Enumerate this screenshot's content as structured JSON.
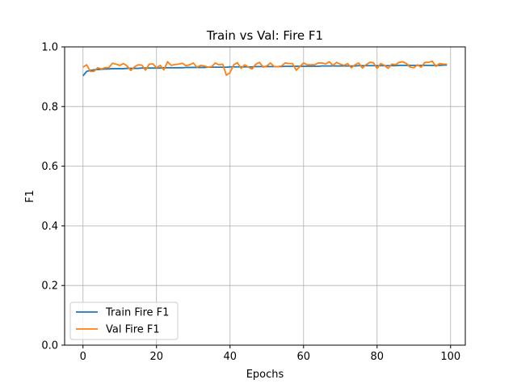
{
  "chart_data": {
    "type": "line",
    "title": "Train vs Val: Fire F1",
    "xlabel": "Epochs",
    "ylabel": "F1",
    "xlim": [
      -5,
      104
    ],
    "ylim": [
      0.0,
      1.0
    ],
    "xticks": [
      0,
      20,
      40,
      60,
      80,
      100
    ],
    "yticks": [
      0.0,
      0.2,
      0.4,
      0.6,
      0.8,
      1.0
    ],
    "xtick_labels": [
      "0",
      "20",
      "40",
      "60",
      "80",
      "100"
    ],
    "ytick_labels": [
      "0.0",
      "0.2",
      "0.4",
      "0.6",
      "0.8",
      "1.0"
    ],
    "grid": true,
    "legend_position": "lower-left",
    "series": [
      {
        "name": "Train Fire F1",
        "color": "#1f77b4",
        "x": [
          0,
          1,
          2,
          3,
          4,
          5,
          6,
          7,
          8,
          9,
          10,
          11,
          12,
          13,
          14,
          15,
          16,
          17,
          18,
          19,
          20,
          21,
          22,
          23,
          24,
          25,
          26,
          27,
          28,
          29,
          30,
          31,
          32,
          33,
          34,
          35,
          36,
          37,
          38,
          39,
          40,
          41,
          42,
          43,
          44,
          45,
          46,
          47,
          48,
          49,
          50,
          51,
          52,
          53,
          54,
          55,
          56,
          57,
          58,
          59,
          60,
          61,
          62,
          63,
          64,
          65,
          66,
          67,
          68,
          69,
          70,
          71,
          72,
          73,
          74,
          75,
          76,
          77,
          78,
          79,
          80,
          81,
          82,
          83,
          84,
          85,
          86,
          87,
          88,
          89,
          90,
          91,
          92,
          93,
          94,
          95,
          96,
          97,
          98,
          99
        ],
        "values": [
          0.903,
          0.918,
          0.921,
          0.923,
          0.924,
          0.925,
          0.926,
          0.926,
          0.927,
          0.927,
          0.927,
          0.927,
          0.928,
          0.928,
          0.928,
          0.928,
          0.929,
          0.929,
          0.929,
          0.929,
          0.929,
          0.929,
          0.93,
          0.93,
          0.93,
          0.93,
          0.93,
          0.93,
          0.931,
          0.931,
          0.931,
          0.931,
          0.931,
          0.931,
          0.932,
          0.932,
          0.932,
          0.932,
          0.932,
          0.932,
          0.933,
          0.933,
          0.933,
          0.933,
          0.933,
          0.933,
          0.933,
          0.934,
          0.934,
          0.934,
          0.934,
          0.934,
          0.934,
          0.934,
          0.934,
          0.935,
          0.935,
          0.935,
          0.935,
          0.935,
          0.935,
          0.935,
          0.935,
          0.935,
          0.935,
          0.936,
          0.936,
          0.936,
          0.936,
          0.936,
          0.936,
          0.936,
          0.936,
          0.936,
          0.936,
          0.937,
          0.937,
          0.937,
          0.937,
          0.937,
          0.937,
          0.937,
          0.937,
          0.937,
          0.937,
          0.937,
          0.938,
          0.938,
          0.938,
          0.938,
          0.938,
          0.938,
          0.938,
          0.938,
          0.938,
          0.938,
          0.938,
          0.938,
          0.939,
          0.939
        ]
      },
      {
        "name": "Val Fire F1",
        "color": "#ff7f0e",
        "x": [
          0,
          1,
          2,
          3,
          4,
          5,
          6,
          7,
          8,
          9,
          10,
          11,
          12,
          13,
          14,
          15,
          16,
          17,
          18,
          19,
          20,
          21,
          22,
          23,
          24,
          25,
          26,
          27,
          28,
          29,
          30,
          31,
          32,
          33,
          34,
          35,
          36,
          37,
          38,
          39,
          40,
          41,
          42,
          43,
          44,
          45,
          46,
          47,
          48,
          49,
          50,
          51,
          52,
          53,
          54,
          55,
          56,
          57,
          58,
          59,
          60,
          61,
          62,
          63,
          64,
          65,
          66,
          67,
          68,
          69,
          70,
          71,
          72,
          73,
          74,
          75,
          76,
          77,
          78,
          79,
          80,
          81,
          82,
          83,
          84,
          85,
          86,
          87,
          88,
          89,
          90,
          91,
          92,
          93,
          94,
          95,
          96,
          97,
          98,
          99
        ],
        "values": [
          0.932,
          0.94,
          0.918,
          0.918,
          0.93,
          0.926,
          0.93,
          0.93,
          0.945,
          0.942,
          0.938,
          0.944,
          0.936,
          0.921,
          0.933,
          0.94,
          0.939,
          0.922,
          0.942,
          0.943,
          0.93,
          0.938,
          0.923,
          0.95,
          0.938,
          0.941,
          0.942,
          0.945,
          0.937,
          0.94,
          0.946,
          0.932,
          0.938,
          0.936,
          0.932,
          0.934,
          0.946,
          0.94,
          0.942,
          0.905,
          0.914,
          0.94,
          0.947,
          0.928,
          0.94,
          0.932,
          0.926,
          0.942,
          0.948,
          0.932,
          0.936,
          0.946,
          0.934,
          0.934,
          0.936,
          0.946,
          0.944,
          0.944,
          0.922,
          0.934,
          0.946,
          0.94,
          0.94,
          0.94,
          0.946,
          0.946,
          0.943,
          0.95,
          0.938,
          0.948,
          0.942,
          0.938,
          0.944,
          0.93,
          0.94,
          0.946,
          0.929,
          0.94,
          0.948,
          0.947,
          0.928,
          0.944,
          0.938,
          0.928,
          0.942,
          0.94,
          0.948,
          0.95,
          0.944,
          0.932,
          0.93,
          0.94,
          0.932,
          0.948,
          0.948,
          0.952,
          0.935,
          0.944,
          0.942,
          0.942
        ]
      }
    ]
  }
}
